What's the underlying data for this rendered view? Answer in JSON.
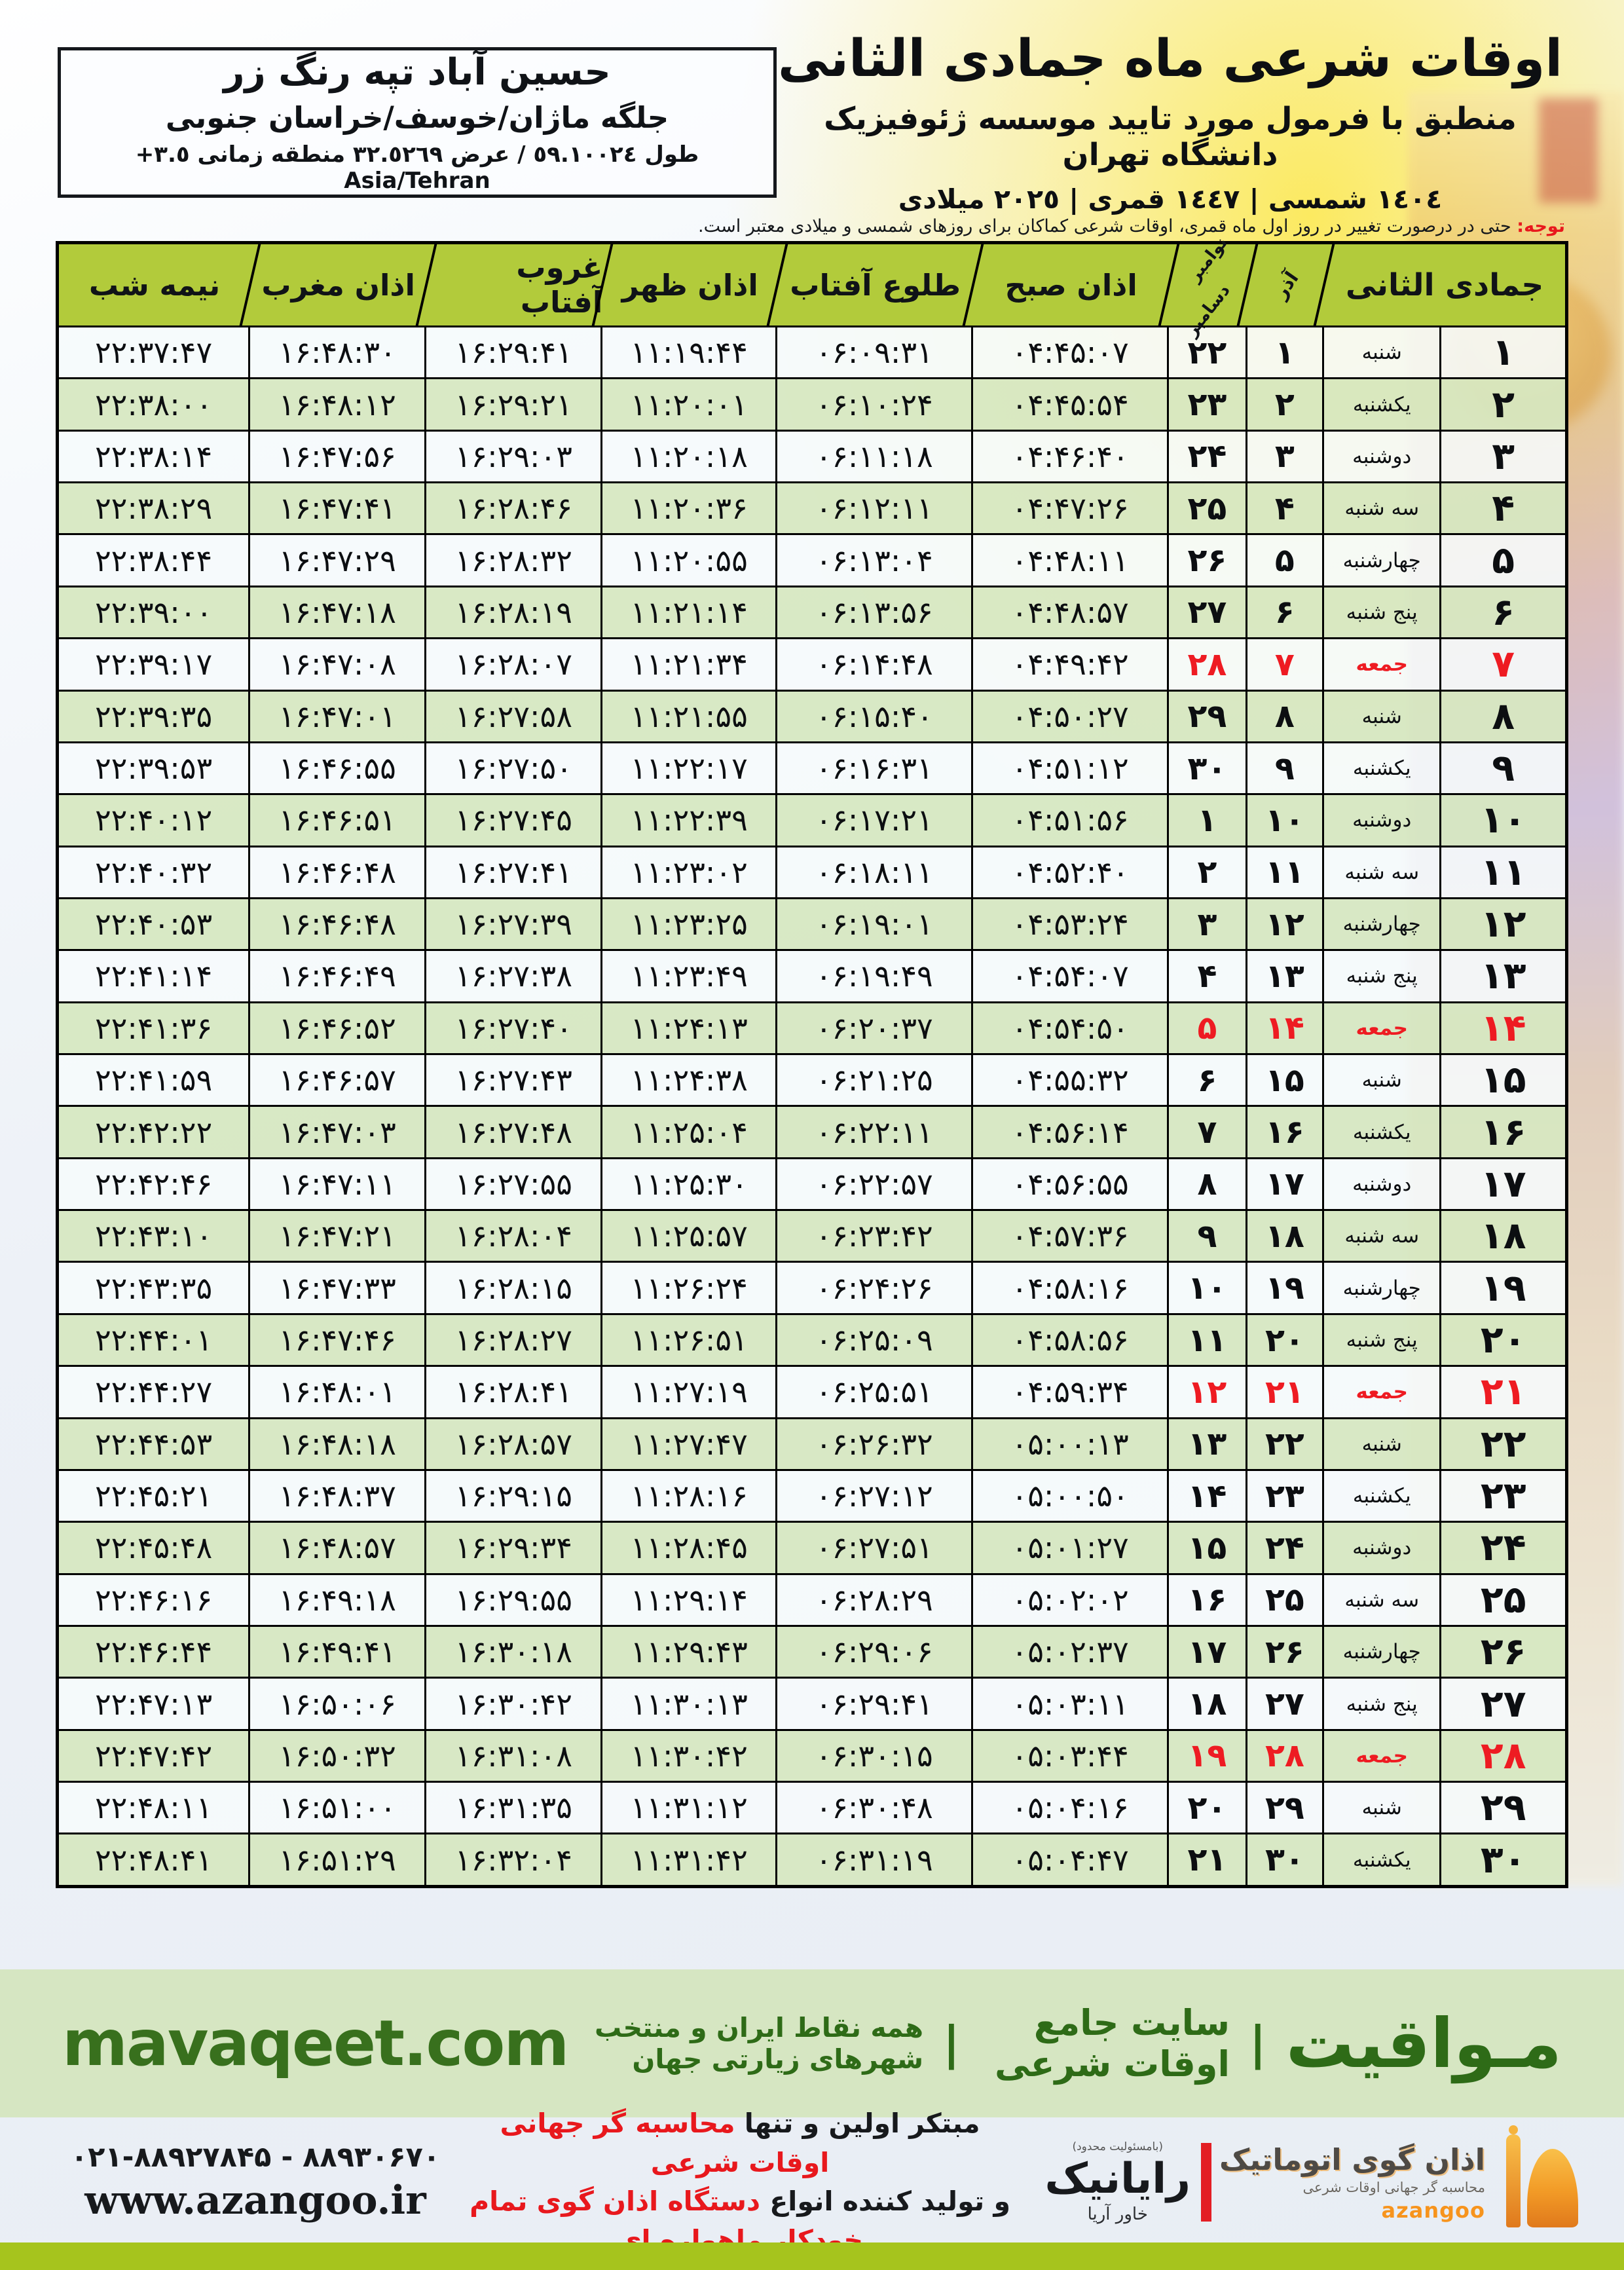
{
  "location": {
    "line1": "حسین آباد تپه رنگ زر",
    "line2": "جلگه  ماژان/خوسف/خراسان جنوبی",
    "line3": "طول ٥٩.١٠٠٢٤ / عرض ٣٢.٥٢٦٩ منطقه زمانی ٣.٥+ Asia/Tehran"
  },
  "header": {
    "title": "اوقات شرعی ماه جمادی الثانی",
    "subtitle": "منطبق با فرمول مورد تایید موسسه ژئوفیزیک دانشگاه تهران",
    "dates": "١٤٠٤ شمسی | ١٤٤٧ قمری | ٢٠٢٥ میلادی"
  },
  "notice": {
    "label": "توجه:",
    "text": " حتی در درصورت تغییر در روز اول ماه قمری، اوقات شرعی کماکان برای روزهای شمسی و میلادی معتبر است."
  },
  "table": {
    "headers": {
      "month": "جمادی الثانی",
      "azar": "آذر",
      "nov": "نوامبر",
      "dec": "دسامبر",
      "fajr": "اذان صبح",
      "sunrise": "طلوع آفتاب",
      "noon": "اذان ظهر",
      "sunset": "غروب آفتاب",
      "maghrib": "اذان مغرب",
      "midnight": "نیمه شب"
    },
    "rows": [
      {
        "day": "۱",
        "weekday": "شنبه",
        "azar": "۱",
        "greg": "۲۲",
        "fajr": "۰۴:۴۵:۰۷",
        "sunrise": "۰۶:۰۹:۳۱",
        "noon": "۱۱:۱۹:۴۴",
        "sunset": "۱۶:۲۹:۴۱",
        "maghrib": "۱۶:۴۸:۳۰",
        "midnight": "۲۲:۳۷:۴۷",
        "friday": false
      },
      {
        "day": "۲",
        "weekday": "یکشنبه",
        "azar": "۲",
        "greg": "۲۳",
        "fajr": "۰۴:۴۵:۵۴",
        "sunrise": "۰۶:۱۰:۲۴",
        "noon": "۱۱:۲۰:۰۱",
        "sunset": "۱۶:۲۹:۲۱",
        "maghrib": "۱۶:۴۸:۱۲",
        "midnight": "۲۲:۳۸:۰۰",
        "friday": false
      },
      {
        "day": "۳",
        "weekday": "دوشنبه",
        "azar": "۳",
        "greg": "۲۴",
        "fajr": "۰۴:۴۶:۴۰",
        "sunrise": "۰۶:۱۱:۱۸",
        "noon": "۱۱:۲۰:۱۸",
        "sunset": "۱۶:۲۹:۰۳",
        "maghrib": "۱۶:۴۷:۵۶",
        "midnight": "۲۲:۳۸:۱۴",
        "friday": false
      },
      {
        "day": "۴",
        "weekday": "سه شنبه",
        "azar": "۴",
        "greg": "۲۵",
        "fajr": "۰۴:۴۷:۲۶",
        "sunrise": "۰۶:۱۲:۱۱",
        "noon": "۱۱:۲۰:۳۶",
        "sunset": "۱۶:۲۸:۴۶",
        "maghrib": "۱۶:۴۷:۴۱",
        "midnight": "۲۲:۳۸:۲۹",
        "friday": false
      },
      {
        "day": "۵",
        "weekday": "چهارشنبه",
        "azar": "۵",
        "greg": "۲۶",
        "fajr": "۰۴:۴۸:۱۱",
        "sunrise": "۰۶:۱۳:۰۴",
        "noon": "۱۱:۲۰:۵۵",
        "sunset": "۱۶:۲۸:۳۲",
        "maghrib": "۱۶:۴۷:۲۹",
        "midnight": "۲۲:۳۸:۴۴",
        "friday": false
      },
      {
        "day": "۶",
        "weekday": "پنج شنبه",
        "azar": "۶",
        "greg": "۲۷",
        "fajr": "۰۴:۴۸:۵۷",
        "sunrise": "۰۶:۱۳:۵۶",
        "noon": "۱۱:۲۱:۱۴",
        "sunset": "۱۶:۲۸:۱۹",
        "maghrib": "۱۶:۴۷:۱۸",
        "midnight": "۲۲:۳۹:۰۰",
        "friday": false
      },
      {
        "day": "۷",
        "weekday": "جمعه",
        "azar": "۷",
        "greg": "۲۸",
        "fajr": "۰۴:۴۹:۴۲",
        "sunrise": "۰۶:۱۴:۴۸",
        "noon": "۱۱:۲۱:۳۴",
        "sunset": "۱۶:۲۸:۰۷",
        "maghrib": "۱۶:۴۷:۰۸",
        "midnight": "۲۲:۳۹:۱۷",
        "friday": true
      },
      {
        "day": "۸",
        "weekday": "شنبه",
        "azar": "۸",
        "greg": "۲۹",
        "fajr": "۰۴:۵۰:۲۷",
        "sunrise": "۰۶:۱۵:۴۰",
        "noon": "۱۱:۲۱:۵۵",
        "sunset": "۱۶:۲۷:۵۸",
        "maghrib": "۱۶:۴۷:۰۱",
        "midnight": "۲۲:۳۹:۳۵",
        "friday": false
      },
      {
        "day": "۹",
        "weekday": "یکشنبه",
        "azar": "۹",
        "greg": "۳۰",
        "fajr": "۰۴:۵۱:۱۲",
        "sunrise": "۰۶:۱۶:۳۱",
        "noon": "۱۱:۲۲:۱۷",
        "sunset": "۱۶:۲۷:۵۰",
        "maghrib": "۱۶:۴۶:۵۵",
        "midnight": "۲۲:۳۹:۵۳",
        "friday": false
      },
      {
        "day": "۱۰",
        "weekday": "دوشنبه",
        "azar": "۱۰",
        "greg": "۱",
        "fajr": "۰۴:۵۱:۵۶",
        "sunrise": "۰۶:۱۷:۲۱",
        "noon": "۱۱:۲۲:۳۹",
        "sunset": "۱۶:۲۷:۴۵",
        "maghrib": "۱۶:۴۶:۵۱",
        "midnight": "۲۲:۴۰:۱۲",
        "friday": false
      },
      {
        "day": "۱۱",
        "weekday": "سه شنبه",
        "azar": "۱۱",
        "greg": "۲",
        "fajr": "۰۴:۵۲:۴۰",
        "sunrise": "۰۶:۱۸:۱۱",
        "noon": "۱۱:۲۳:۰۲",
        "sunset": "۱۶:۲۷:۴۱",
        "maghrib": "۱۶:۴۶:۴۸",
        "midnight": "۲۲:۴۰:۳۲",
        "friday": false
      },
      {
        "day": "۱۲",
        "weekday": "چهارشنبه",
        "azar": "۱۲",
        "greg": "۳",
        "fajr": "۰۴:۵۳:۲۴",
        "sunrise": "۰۶:۱۹:۰۱",
        "noon": "۱۱:۲۳:۲۵",
        "sunset": "۱۶:۲۷:۳۹",
        "maghrib": "۱۶:۴۶:۴۸",
        "midnight": "۲۲:۴۰:۵۳",
        "friday": false
      },
      {
        "day": "۱۳",
        "weekday": "پنج شنبه",
        "azar": "۱۳",
        "greg": "۴",
        "fajr": "۰۴:۵۴:۰۷",
        "sunrise": "۰۶:۱۹:۴۹",
        "noon": "۱۱:۲۳:۴۹",
        "sunset": "۱۶:۲۷:۳۸",
        "maghrib": "۱۶:۴۶:۴۹",
        "midnight": "۲۲:۴۱:۱۴",
        "friday": false
      },
      {
        "day": "۱۴",
        "weekday": "جمعه",
        "azar": "۱۴",
        "greg": "۵",
        "fajr": "۰۴:۵۴:۵۰",
        "sunrise": "۰۶:۲۰:۳۷",
        "noon": "۱۱:۲۴:۱۳",
        "sunset": "۱۶:۲۷:۴۰",
        "maghrib": "۱۶:۴۶:۵۲",
        "midnight": "۲۲:۴۱:۳۶",
        "friday": true
      },
      {
        "day": "۱۵",
        "weekday": "شنبه",
        "azar": "۱۵",
        "greg": "۶",
        "fajr": "۰۴:۵۵:۳۲",
        "sunrise": "۰۶:۲۱:۲۵",
        "noon": "۱۱:۲۴:۳۸",
        "sunset": "۱۶:۲۷:۴۳",
        "maghrib": "۱۶:۴۶:۵۷",
        "midnight": "۲۲:۴۱:۵۹",
        "friday": false
      },
      {
        "day": "۱۶",
        "weekday": "یکشنبه",
        "azar": "۱۶",
        "greg": "۷",
        "fajr": "۰۴:۵۶:۱۴",
        "sunrise": "۰۶:۲۲:۱۱",
        "noon": "۱۱:۲۵:۰۴",
        "sunset": "۱۶:۲۷:۴۸",
        "maghrib": "۱۶:۴۷:۰۳",
        "midnight": "۲۲:۴۲:۲۲",
        "friday": false
      },
      {
        "day": "۱۷",
        "weekday": "دوشنبه",
        "azar": "۱۷",
        "greg": "۸",
        "fajr": "۰۴:۵۶:۵۵",
        "sunrise": "۰۶:۲۲:۵۷",
        "noon": "۱۱:۲۵:۳۰",
        "sunset": "۱۶:۲۷:۵۵",
        "maghrib": "۱۶:۴۷:۱۱",
        "midnight": "۲۲:۴۲:۴۶",
        "friday": false
      },
      {
        "day": "۱۸",
        "weekday": "سه شنبه",
        "azar": "۱۸",
        "greg": "۹",
        "fajr": "۰۴:۵۷:۳۶",
        "sunrise": "۰۶:۲۳:۴۲",
        "noon": "۱۱:۲۵:۵۷",
        "sunset": "۱۶:۲۸:۰۴",
        "maghrib": "۱۶:۴۷:۲۱",
        "midnight": "۲۲:۴۳:۱۰",
        "friday": false
      },
      {
        "day": "۱۹",
        "weekday": "چهارشنبه",
        "azar": "۱۹",
        "greg": "۱۰",
        "fajr": "۰۴:۵۸:۱۶",
        "sunrise": "۰۶:۲۴:۲۶",
        "noon": "۱۱:۲۶:۲۴",
        "sunset": "۱۶:۲۸:۱۵",
        "maghrib": "۱۶:۴۷:۳۳",
        "midnight": "۲۲:۴۳:۳۵",
        "friday": false
      },
      {
        "day": "۲۰",
        "weekday": "پنج شنبه",
        "azar": "۲۰",
        "greg": "۱۱",
        "fajr": "۰۴:۵۸:۵۶",
        "sunrise": "۰۶:۲۵:۰۹",
        "noon": "۱۱:۲۶:۵۱",
        "sunset": "۱۶:۲۸:۲۷",
        "maghrib": "۱۶:۴۷:۴۶",
        "midnight": "۲۲:۴۴:۰۱",
        "friday": false
      },
      {
        "day": "۲۱",
        "weekday": "جمعه",
        "azar": "۲۱",
        "greg": "۱۲",
        "fajr": "۰۴:۵۹:۳۴",
        "sunrise": "۰۶:۲۵:۵۱",
        "noon": "۱۱:۲۷:۱۹",
        "sunset": "۱۶:۲۸:۴۱",
        "maghrib": "۱۶:۴۸:۰۱",
        "midnight": "۲۲:۴۴:۲۷",
        "friday": true
      },
      {
        "day": "۲۲",
        "weekday": "شنبه",
        "azar": "۲۲",
        "greg": "۱۳",
        "fajr": "۰۵:۰۰:۱۳",
        "sunrise": "۰۶:۲۶:۳۲",
        "noon": "۱۱:۲۷:۴۷",
        "sunset": "۱۶:۲۸:۵۷",
        "maghrib": "۱۶:۴۸:۱۸",
        "midnight": "۲۲:۴۴:۵۳",
        "friday": false
      },
      {
        "day": "۲۳",
        "weekday": "یکشنبه",
        "azar": "۲۳",
        "greg": "۱۴",
        "fajr": "۰۵:۰۰:۵۰",
        "sunrise": "۰۶:۲۷:۱۲",
        "noon": "۱۱:۲۸:۱۶",
        "sunset": "۱۶:۲۹:۱۵",
        "maghrib": "۱۶:۴۸:۳۷",
        "midnight": "۲۲:۴۵:۲۱",
        "friday": false
      },
      {
        "day": "۲۴",
        "weekday": "دوشنبه",
        "azar": "۲۴",
        "greg": "۱۵",
        "fajr": "۰۵:۰۱:۲۷",
        "sunrise": "۰۶:۲۷:۵۱",
        "noon": "۱۱:۲۸:۴۵",
        "sunset": "۱۶:۲۹:۳۴",
        "maghrib": "۱۶:۴۸:۵۷",
        "midnight": "۲۲:۴۵:۴۸",
        "friday": false
      },
      {
        "day": "۲۵",
        "weekday": "سه شنبه",
        "azar": "۲۵",
        "greg": "۱۶",
        "fajr": "۰۵:۰۲:۰۲",
        "sunrise": "۰۶:۲۸:۲۹",
        "noon": "۱۱:۲۹:۱۴",
        "sunset": "۱۶:۲۹:۵۵",
        "maghrib": "۱۶:۴۹:۱۸",
        "midnight": "۲۲:۴۶:۱۶",
        "friday": false
      },
      {
        "day": "۲۶",
        "weekday": "چهارشنبه",
        "azar": "۲۶",
        "greg": "۱۷",
        "fajr": "۰۵:۰۲:۳۷",
        "sunrise": "۰۶:۲۹:۰۶",
        "noon": "۱۱:۲۹:۴۳",
        "sunset": "۱۶:۳۰:۱۸",
        "maghrib": "۱۶:۴۹:۴۱",
        "midnight": "۲۲:۴۶:۴۴",
        "friday": false
      },
      {
        "day": "۲۷",
        "weekday": "پنج شنبه",
        "azar": "۲۷",
        "greg": "۱۸",
        "fajr": "۰۵:۰۳:۱۱",
        "sunrise": "۰۶:۲۹:۴۱",
        "noon": "۱۱:۳۰:۱۳",
        "sunset": "۱۶:۳۰:۴۲",
        "maghrib": "۱۶:۵۰:۰۶",
        "midnight": "۲۲:۴۷:۱۳",
        "friday": false
      },
      {
        "day": "۲۸",
        "weekday": "جمعه",
        "azar": "۲۸",
        "greg": "۱۹",
        "fajr": "۰۵:۰۳:۴۴",
        "sunrise": "۰۶:۳۰:۱۵",
        "noon": "۱۱:۳۰:۴۲",
        "sunset": "۱۶:۳۱:۰۸",
        "maghrib": "۱۶:۵۰:۳۲",
        "midnight": "۲۲:۴۷:۴۲",
        "friday": true
      },
      {
        "day": "۲۹",
        "weekday": "شنبه",
        "azar": "۲۹",
        "greg": "۲۰",
        "fajr": "۰۵:۰۴:۱۶",
        "sunrise": "۰۶:۳۰:۴۸",
        "noon": "۱۱:۳۱:۱۲",
        "sunset": "۱۶:۳۱:۳۵",
        "maghrib": "۱۶:۵۱:۰۰",
        "midnight": "۲۲:۴۸:۱۱",
        "friday": false
      },
      {
        "day": "۳۰",
        "weekday": "یکشنبه",
        "azar": "۳۰",
        "greg": "۲۱",
        "fajr": "۰۵:۰۴:۴۷",
        "sunrise": "۰۶:۳۱:۱۹",
        "noon": "۱۱:۳۱:۴۲",
        "sunset": "۱۶:۳۲:۰۴",
        "maghrib": "۱۶:۵۱:۲۹",
        "midnight": "۲۲:۴۸:۴۱",
        "friday": false
      }
    ]
  },
  "footer": {
    "brand": "مـواقیت",
    "divider": "|",
    "site_desc": "سایت جامع اوقات شرعی",
    "site_desc2": "همه نقاط ایران و منتخب شهرهای زیارتی جهان",
    "domain": "mavaqeet.com"
  },
  "bottom": {
    "line1_black": "مبتکر اولین و تنها ",
    "line1_red": "محاسبه گر جهانی اوقات شرعی",
    "line2_black": "و تولید کننده انواع ",
    "line2_red": "دستگاه اذان گوی تمام خودکار ماهواره ای",
    "phone": "۰۲۱-۸۸۹۲۷۸۴۵ - ۸۸۹۳۰۶۷۰",
    "website": "www.azangoo.ir",
    "rayanik_note": "(بامسئولیت محدود)",
    "rayanik_name": "رایانیک",
    "rayanik_sub": "خاور آریا",
    "azangoo_title": "اذان گوی اتوماتیک",
    "azangoo_sub": "محاسبه گر جهانی اوقات شرعی",
    "azangoo_latin": "azangoo"
  },
  "colors": {
    "header_green": "#b2cb3b",
    "row_green": "#d6e7c0",
    "row_white": "#f6fafc",
    "friday_red": "#ee1b22",
    "footer_band_green": "#d6e6c2",
    "footer_text_green": "#2e6b17",
    "bottom_bar_green": "#a6c41d",
    "azangoo_orange": "#f7941d",
    "rayanik_red": "#e31e24"
  }
}
